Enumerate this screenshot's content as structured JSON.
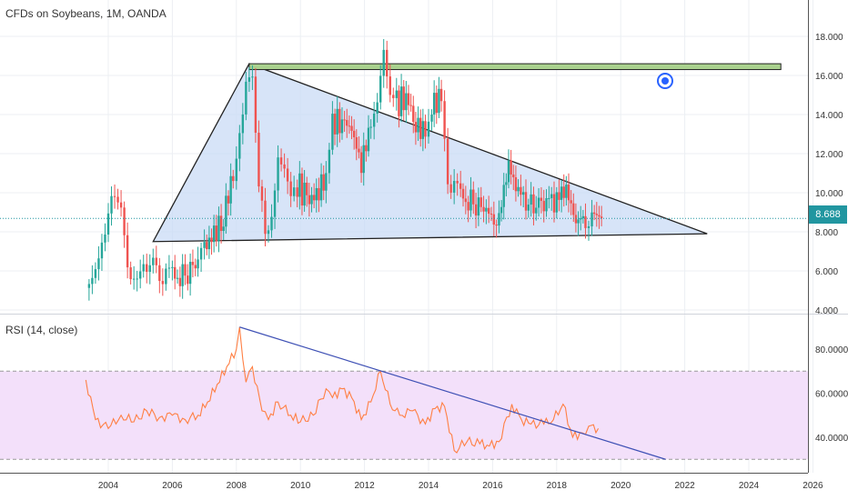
{
  "title": "CFDs on Soybeans, 1M, OANDA",
  "last_price_label": "8.688",
  "colors": {
    "up": "#26a69a",
    "down": "#ef5350",
    "triangle_fill": "#c9dbf5",
    "resistance_fill": "#a9d18e",
    "rsi_line": "#ff7f43",
    "rsi_band": "#f3e0fa",
    "rsi_trend": "#3f51b5",
    "price_line": "#2196a0",
    "eye_icon": "#2962ff"
  },
  "chart_data": [
    {
      "type": "candlestick",
      "title": "CFDs on Soybeans, 1M, OANDA",
      "x_ticks": [
        "2004",
        "2006",
        "2008",
        "2010",
        "2012",
        "2014",
        "2016",
        "2018",
        "2020",
        "2022",
        "2024",
        "2026"
      ],
      "y_ticks": [
        "4.000",
        "6.000",
        "8.000",
        "10.000",
        "12.000",
        "14.000",
        "16.000",
        "18.000"
      ],
      "ylim": [
        3.8,
        19.3
      ],
      "xlim": [
        2001.0,
        2026.0
      ],
      "last_price": 8.688,
      "monthly_close_approx": [
        {
          "t": 2003.4,
          "c": 5.8
        },
        {
          "t": 2003.6,
          "c": 6.2
        },
        {
          "t": 2003.8,
          "c": 7.5
        },
        {
          "t": 2004.0,
          "c": 8.2
        },
        {
          "t": 2004.2,
          "c": 10.0
        },
        {
          "t": 2004.4,
          "c": 9.5
        },
        {
          "t": 2004.6,
          "c": 6.5
        },
        {
          "t": 2004.8,
          "c": 5.5
        },
        {
          "t": 2005.0,
          "c": 5.3
        },
        {
          "t": 2005.2,
          "c": 6.2
        },
        {
          "t": 2005.4,
          "c": 6.8
        },
        {
          "t": 2005.6,
          "c": 6.0
        },
        {
          "t": 2005.8,
          "c": 5.8
        },
        {
          "t": 2006.0,
          "c": 5.7
        },
        {
          "t": 2006.4,
          "c": 5.9
        },
        {
          "t": 2006.8,
          "c": 6.1
        },
        {
          "t": 2007.0,
          "c": 7.2
        },
        {
          "t": 2007.3,
          "c": 7.8
        },
        {
          "t": 2007.6,
          "c": 8.8
        },
        {
          "t": 2007.9,
          "c": 11.0
        },
        {
          "t": 2008.1,
          "c": 13.5
        },
        {
          "t": 2008.3,
          "c": 15.2
        },
        {
          "t": 2008.5,
          "c": 15.8
        },
        {
          "t": 2008.7,
          "c": 10.0
        },
        {
          "t": 2008.9,
          "c": 8.5
        },
        {
          "t": 2009.1,
          "c": 9.0
        },
        {
          "t": 2009.3,
          "c": 11.5
        },
        {
          "t": 2009.5,
          "c": 11.0
        },
        {
          "t": 2009.7,
          "c": 9.5
        },
        {
          "t": 2009.9,
          "c": 10.5
        },
        {
          "t": 2010.2,
          "c": 9.6
        },
        {
          "t": 2010.5,
          "c": 9.8
        },
        {
          "t": 2010.8,
          "c": 11.0
        },
        {
          "t": 2011.0,
          "c": 13.5
        },
        {
          "t": 2011.3,
          "c": 13.8
        },
        {
          "t": 2011.6,
          "c": 13.2
        },
        {
          "t": 2011.9,
          "c": 11.5
        },
        {
          "t": 2012.2,
          "c": 13.5
        },
        {
          "t": 2012.4,
          "c": 15.0
        },
        {
          "t": 2012.6,
          "c": 17.5
        },
        {
          "t": 2012.8,
          "c": 15.0
        },
        {
          "t": 2013.0,
          "c": 14.5
        },
        {
          "t": 2013.3,
          "c": 15.0
        },
        {
          "t": 2013.6,
          "c": 13.5
        },
        {
          "t": 2013.9,
          "c": 13.0
        },
        {
          "t": 2014.1,
          "c": 14.5
        },
        {
          "t": 2014.4,
          "c": 14.8
        },
        {
          "t": 2014.6,
          "c": 11.0
        },
        {
          "t": 2014.8,
          "c": 10.2
        },
        {
          "t": 2015.0,
          "c": 9.8
        },
        {
          "t": 2015.4,
          "c": 9.6
        },
        {
          "t": 2015.8,
          "c": 8.7
        },
        {
          "t": 2016.2,
          "c": 8.8
        },
        {
          "t": 2016.5,
          "c": 11.5
        },
        {
          "t": 2016.8,
          "c": 9.8
        },
        {
          "t": 2017.2,
          "c": 9.6
        },
        {
          "t": 2017.6,
          "c": 9.3
        },
        {
          "t": 2018.0,
          "c": 9.8
        },
        {
          "t": 2018.3,
          "c": 10.2
        },
        {
          "t": 2018.6,
          "c": 8.5
        },
        {
          "t": 2018.9,
          "c": 8.9
        },
        {
          "t": 2019.1,
          "c": 9.0
        },
        {
          "t": 2019.4,
          "c": 8.7
        }
      ],
      "drawings": [
        {
          "type": "triangle",
          "points": [
            [
              2005.4,
              7.5
            ],
            [
              2008.4,
              16.6
            ],
            [
              2022.7,
              7.9
            ]
          ]
        },
        {
          "type": "resistance_zone",
          "from": 2008.4,
          "to": 2025.0,
          "low": 16.3,
          "high": 16.6
        }
      ]
    },
    {
      "type": "line",
      "title": "RSI (14, close)",
      "y_ticks": [
        "40.0000",
        "60.0000",
        "80.0000"
      ],
      "ylim": [
        22,
        96
      ],
      "band": [
        30,
        70
      ],
      "values": [
        {
          "t": 2003.3,
          "v": 66
        },
        {
          "t": 2003.6,
          "v": 48
        },
        {
          "t": 2004.0,
          "v": 44
        },
        {
          "t": 2004.4,
          "v": 50
        },
        {
          "t": 2004.8,
          "v": 47
        },
        {
          "t": 2005.2,
          "v": 52
        },
        {
          "t": 2005.6,
          "v": 49
        },
        {
          "t": 2006.0,
          "v": 50
        },
        {
          "t": 2006.4,
          "v": 48
        },
        {
          "t": 2006.8,
          "v": 50
        },
        {
          "t": 2007.1,
          "v": 56
        },
        {
          "t": 2007.4,
          "v": 64
        },
        {
          "t": 2007.7,
          "v": 72
        },
        {
          "t": 2008.0,
          "v": 80
        },
        {
          "t": 2008.1,
          "v": 90
        },
        {
          "t": 2008.3,
          "v": 65
        },
        {
          "t": 2008.5,
          "v": 72
        },
        {
          "t": 2008.8,
          "v": 52
        },
        {
          "t": 2009.0,
          "v": 48
        },
        {
          "t": 2009.3,
          "v": 56
        },
        {
          "t": 2009.7,
          "v": 50
        },
        {
          "t": 2010.0,
          "v": 47
        },
        {
          "t": 2010.4,
          "v": 50
        },
        {
          "t": 2010.8,
          "v": 62
        },
        {
          "t": 2011.0,
          "v": 58
        },
        {
          "t": 2011.3,
          "v": 62
        },
        {
          "t": 2011.6,
          "v": 58
        },
        {
          "t": 2011.9,
          "v": 48
        },
        {
          "t": 2012.2,
          "v": 56
        },
        {
          "t": 2012.5,
          "v": 70
        },
        {
          "t": 2012.8,
          "v": 55
        },
        {
          "t": 2013.1,
          "v": 50
        },
        {
          "t": 2013.5,
          "v": 52
        },
        {
          "t": 2013.9,
          "v": 46
        },
        {
          "t": 2014.2,
          "v": 53
        },
        {
          "t": 2014.5,
          "v": 54
        },
        {
          "t": 2014.8,
          "v": 34
        },
        {
          "t": 2015.2,
          "v": 38
        },
        {
          "t": 2015.6,
          "v": 37
        },
        {
          "t": 2015.9,
          "v": 36
        },
        {
          "t": 2016.2,
          "v": 38
        },
        {
          "t": 2016.6,
          "v": 55
        },
        {
          "t": 2016.9,
          "v": 48
        },
        {
          "t": 2017.2,
          "v": 46
        },
        {
          "t": 2017.6,
          "v": 46
        },
        {
          "t": 2017.9,
          "v": 48
        },
        {
          "t": 2018.2,
          "v": 55
        },
        {
          "t": 2018.5,
          "v": 40
        },
        {
          "t": 2018.8,
          "v": 42
        },
        {
          "t": 2019.0,
          "v": 45
        },
        {
          "t": 2019.3,
          "v": 44
        }
      ],
      "drawings": [
        {
          "type": "trendline",
          "points": [
            [
              2008.1,
              90
            ],
            [
              2021.4,
              30
            ]
          ]
        }
      ]
    }
  ]
}
